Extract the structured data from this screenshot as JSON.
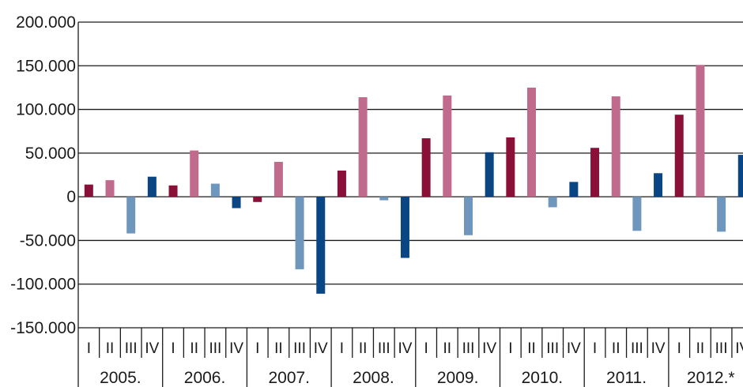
{
  "chart_data": {
    "type": "bar",
    "title": "",
    "xlabel": "",
    "ylabel": "",
    "ylim": [
      -150000,
      200000
    ],
    "yticks": [
      200000,
      150000,
      100000,
      50000,
      0,
      -50000,
      -100000,
      -150000
    ],
    "ytick_labels": [
      "200.000",
      "150.000",
      "100.000",
      "50.000",
      "0",
      "-50.000",
      "-100.000",
      "-150.000"
    ],
    "grid": true,
    "legend": "none",
    "quarter_labels": [
      "I",
      "II",
      "III",
      "IV"
    ],
    "quarter_colors": [
      "#8b1038",
      "#c06a8e",
      "#6f97bd",
      "#0b4684"
    ],
    "years": [
      {
        "label": "2005.",
        "values": [
          14000,
          19000,
          -42000,
          23000
        ]
      },
      {
        "label": "2006.",
        "values": [
          13000,
          53000,
          15000,
          -13000
        ]
      },
      {
        "label": "2007.",
        "values": [
          -6000,
          40000,
          -83000,
          -111000
        ]
      },
      {
        "label": "2008.",
        "values": [
          30000,
          114000,
          -4000,
          -70000
        ]
      },
      {
        "label": "2009.",
        "values": [
          67000,
          116000,
          -44000,
          51000
        ]
      },
      {
        "label": "2010.",
        "values": [
          68000,
          125000,
          -12000,
          17000
        ]
      },
      {
        "label": "2011.",
        "values": [
          56000,
          115000,
          -39000,
          27000
        ]
      },
      {
        "label": "2012.*",
        "values": [
          94000,
          151000,
          -40000,
          48000
        ]
      }
    ]
  }
}
